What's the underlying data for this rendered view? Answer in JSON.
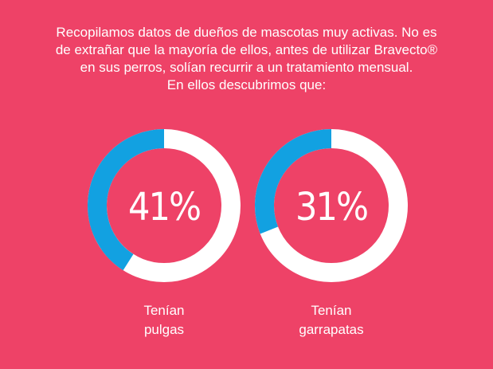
{
  "intro": {
    "line1": "Recopilamos datos de dueños de mascotas muy activas. No es",
    "line2": "de extrañar que la mayoría de ellos, antes de utilizar Bravecto®",
    "line3": "en sus perros, solían recurrir a un tratamiento mensual.",
    "line4": "En ellos descubrimos que:"
  },
  "colors": {
    "background": "#ee4267",
    "track": "#ffffff",
    "fill": "#12a1e1",
    "text": "#ffffff"
  },
  "chart_data": [
    {
      "type": "pie",
      "variant": "donut",
      "value_percent": 41,
      "center_label": "41%",
      "caption_line1": "Tenían",
      "caption_line2": "pulgas"
    },
    {
      "type": "pie",
      "variant": "donut",
      "value_percent": 31,
      "center_label": "31%",
      "caption_line1": "Tenían",
      "caption_line2": "garrapatas"
    }
  ]
}
